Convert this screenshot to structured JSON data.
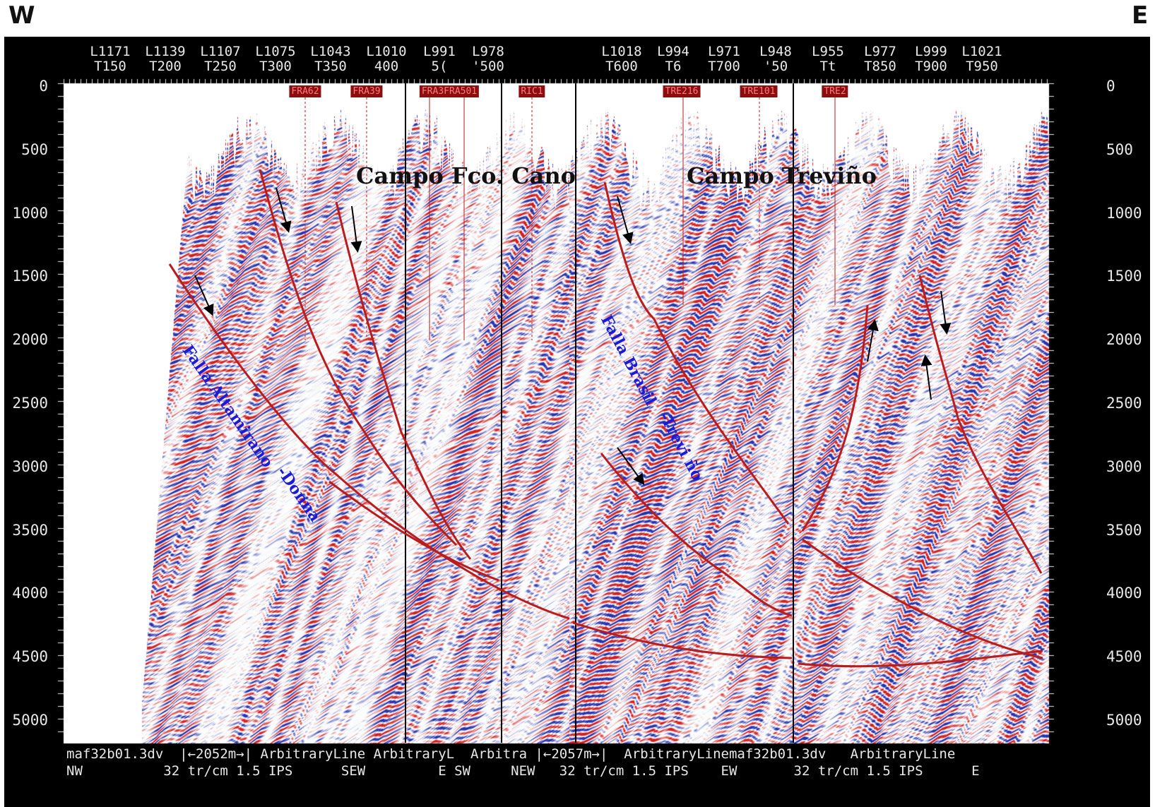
{
  "compass": {
    "west": "W",
    "east": "E"
  },
  "header_lines": [
    {
      "line": "L1171",
      "trace": "T150"
    },
    {
      "line": "L1139",
      "trace": "T200"
    },
    {
      "line": "L1107",
      "trace": "T250"
    },
    {
      "line": "L1075",
      "trace": "T300"
    },
    {
      "line": "L1043",
      "trace": "T350"
    },
    {
      "line": "L1010",
      "trace": "400"
    },
    {
      "line": "L991",
      "trace": "5("
    },
    {
      "line": "L978",
      "trace": "'500"
    },
    {
      "line": "L1018",
      "trace": "T600"
    },
    {
      "line": "L994",
      "trace": "T6"
    },
    {
      "line": "L971",
      "trace": "T700"
    },
    {
      "line": "L948",
      "trace": "'50"
    },
    {
      "line": "L955",
      "trace": "Tt"
    },
    {
      "line": "L977",
      "trace": "T850"
    },
    {
      "line": "L999",
      "trace": "T900"
    },
    {
      "line": "L1021",
      "trace": "T950"
    }
  ],
  "wells": [
    "FRA62",
    "FRA39",
    "FRA3FRA501",
    "RIC1",
    "TRE216",
    "TRE101",
    "TRE2"
  ],
  "depth_axis": {
    "ticks": [
      0,
      500,
      1000,
      1500,
      2000,
      2500,
      3000,
      3500,
      4000,
      4500,
      5000
    ],
    "range": [
      0,
      5000
    ]
  },
  "fields": {
    "campo_cano": "Campo Fco. Cano",
    "campo_trevino": "Campo Treviño"
  },
  "faults": {
    "altamirano": "Falla Altamirano",
    "altamirano_suffix": "-Donna",
    "brasil": "Falla Brasil",
    "brasil_suffix": "-Trevi ño"
  },
  "footer": {
    "line1": "maf32b01.3dv  |←2052m→| ArbitraryLine ArbitraryL  Arbitra |←2057m→|  ArbitraryLinemaf32b01.3dv   ArbitraryLine",
    "line2": "NW          32 tr/cm 1.5 IPS      SEW         E SW     NEW   32 tr/cm 1.5 IPS    EW       32 tr/cm 1.5 IPS      E"
  },
  "colors": {
    "fault": "#b81c1c",
    "positive": "#d42020",
    "negative": "#2030b0",
    "frame": "#000000",
    "label_blue": "#1a1ad8"
  }
}
